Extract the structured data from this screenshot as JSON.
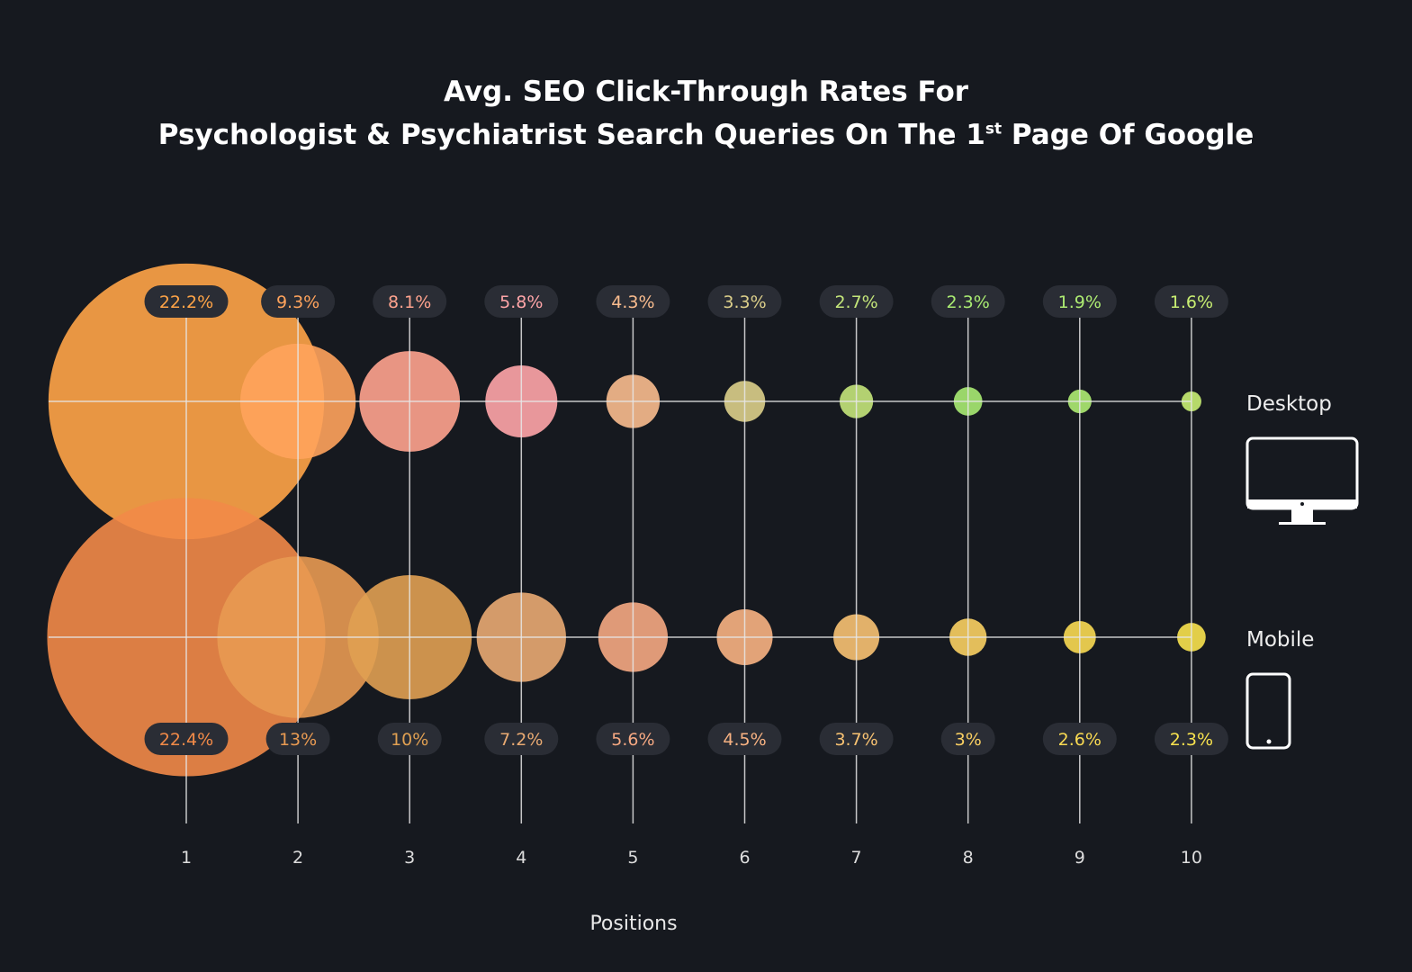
{
  "chart_data": {
    "type": "bubble",
    "title_line1": "Avg. SEO Click-Through Rates For",
    "title_line2_pre": "Psychologist & Psychiatrist Search Queries On The 1",
    "title_line2_sup": "st",
    "title_line2_post": " Page Of Google",
    "xlabel": "Positions",
    "categories": [
      "1",
      "2",
      "3",
      "4",
      "5",
      "6",
      "7",
      "8",
      "9",
      "10"
    ],
    "series": [
      {
        "name": "Desktop",
        "icon": "desktop-monitor-icon",
        "values": [
          22.2,
          9.3,
          8.1,
          5.8,
          4.3,
          3.3,
          2.7,
          2.3,
          1.9,
          1.6
        ],
        "labels": [
          "22.2%",
          "9.3%",
          "8.1%",
          "5.8%",
          "4.3%",
          "3.3%",
          "2.7%",
          "2.3%",
          "1.9%",
          "1.6%"
        ],
        "colors": [
          "#FFA447",
          "#FFA35C",
          "#FFA38E",
          "#FFA5A8",
          "#F9BC8E",
          "#DCCF8A",
          "#C4E67A",
          "#A9EB72",
          "#AEEC72",
          "#C8EE72"
        ]
      },
      {
        "name": "Mobile",
        "icon": "mobile-phone-icon",
        "values": [
          22.4,
          13,
          10,
          7.2,
          5.6,
          4.5,
          3.7,
          3,
          2.6,
          2.3
        ],
        "labels": [
          "22.4%",
          "13%",
          "10%",
          "7.2%",
          "5.6%",
          "4.5%",
          "3.7%",
          "3%",
          "2.6%",
          "2.3%"
        ],
        "colors": [
          "#F28A48",
          "#E89A52",
          "#E0A052",
          "#E9AA72",
          "#F5A882",
          "#F8B282",
          "#F8C272",
          "#FAD062",
          "#F9DA52",
          "#F8E24E"
        ]
      }
    ],
    "background": "#16191f",
    "grid": true
  }
}
